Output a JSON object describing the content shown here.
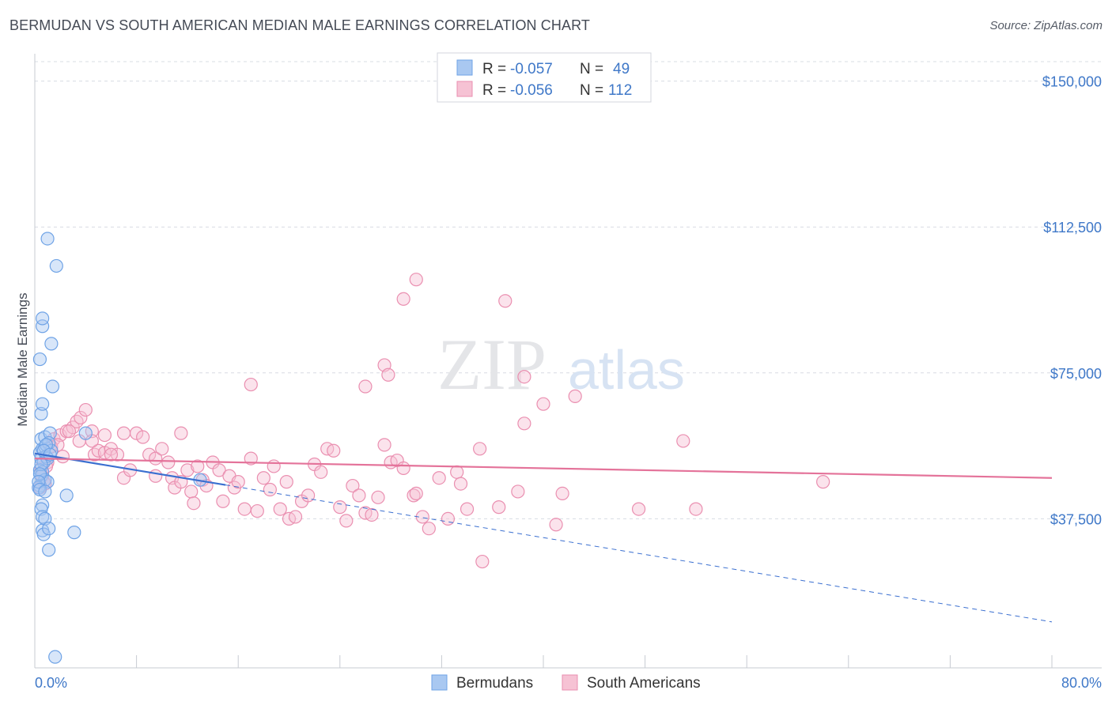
{
  "title": "BERMUDAN VS SOUTH AMERICAN MEDIAN MALE EARNINGS CORRELATION CHART",
  "source": "Source: ZipAtlas.com",
  "watermark": {
    "zip": "ZIP",
    "atlas": "atlas"
  },
  "colors": {
    "blue": "#6fa3e6",
    "blue_fill": "#a9c8f1",
    "blue_line": "#3a6fd0",
    "pink": "#ea8fb0",
    "pink_fill": "#f6c2d4",
    "pink_line": "#e4739a",
    "tick_text": "#3f78c8",
    "grid": "#d8dce3"
  },
  "legend": {
    "rows": [
      {
        "r_label": "R = ",
        "r_value": "-0.057",
        "n_label": "N = ",
        "n_value": "49",
        "series": "blue"
      },
      {
        "r_label": "R = ",
        "r_value": "-0.056",
        "n_label": "N = ",
        "n_value": "112",
        "series": "pink"
      }
    ]
  },
  "bottom_legend": [
    {
      "label": "Bermudans",
      "series": "blue"
    },
    {
      "label": "South Americans",
      "series": "pink"
    }
  ],
  "chart_data": {
    "type": "scatter",
    "title": "BERMUDAN VS SOUTH AMERICAN MEDIAN MALE EARNINGS CORRELATION CHART",
    "ylabel": "Median Male Earnings",
    "xlabel": "",
    "xlim": [
      0,
      80
    ],
    "ylim": [
      0,
      155000
    ],
    "x_tick_labels": [
      "0.0%",
      "80.0%"
    ],
    "y_ticks": [
      37500,
      75000,
      112500,
      150000
    ],
    "y_tick_labels": [
      "$37,500",
      "$75,000",
      "$112,500",
      "$150,000"
    ],
    "grid": "horizontal dashed",
    "series": [
      {
        "name": "Bermudans",
        "color": "#6fa3e6",
        "trend": {
          "x": [
            0,
            15
          ],
          "y": [
            54300,
            46200
          ],
          "extended_to": [
            80,
            11000
          ]
        },
        "points": [
          [
            0.4,
            54500
          ],
          [
            0.6,
            55500
          ],
          [
            0.8,
            56000
          ],
          [
            0.5,
            53000
          ],
          [
            0.7,
            52000
          ],
          [
            0.4,
            50000
          ],
          [
            0.6,
            49500
          ],
          [
            0.5,
            48500
          ],
          [
            0.8,
            47500
          ],
          [
            0.4,
            46000
          ],
          [
            0.3,
            45500
          ],
          [
            1.0,
            47000
          ],
          [
            0.6,
            41000
          ],
          [
            0.5,
            40000
          ],
          [
            0.6,
            38000
          ],
          [
            0.8,
            37500
          ],
          [
            0.6,
            34500
          ],
          [
            0.7,
            33500
          ],
          [
            1.1,
            35000
          ],
          [
            1.1,
            29500
          ],
          [
            3.1,
            34000
          ],
          [
            2.5,
            43500
          ],
          [
            0.5,
            58000
          ],
          [
            0.8,
            58500
          ],
          [
            1.2,
            59500
          ],
          [
            1.1,
            57000
          ],
          [
            0.9,
            53500
          ],
          [
            1.3,
            55000
          ],
          [
            1.0,
            53000
          ],
          [
            4.0,
            59500
          ],
          [
            0.5,
            64500
          ],
          [
            0.6,
            67000
          ],
          [
            1.4,
            71500
          ],
          [
            0.4,
            78500
          ],
          [
            1.3,
            82500
          ],
          [
            0.6,
            87000
          ],
          [
            0.6,
            89000
          ],
          [
            1.0,
            109500
          ],
          [
            1.7,
            102500
          ],
          [
            1.6,
            2000
          ],
          [
            0.5,
            51500
          ],
          [
            0.4,
            49000
          ],
          [
            0.9,
            56500
          ],
          [
            0.7,
            55000
          ],
          [
            0.3,
            47000
          ],
          [
            0.4,
            45000
          ],
          [
            13.0,
            47500
          ],
          [
            0.8,
            44500
          ],
          [
            1.2,
            54000
          ]
        ]
      },
      {
        "name": "South Americans",
        "color": "#ea8fb0",
        "trend": {
          "x": [
            0,
            80
          ],
          "y": [
            53000,
            48000
          ]
        },
        "points": [
          [
            0.5,
            50500
          ],
          [
            0.6,
            48500
          ],
          [
            0.7,
            47000
          ],
          [
            0.8,
            46500
          ],
          [
            1.0,
            52000
          ],
          [
            1.2,
            56000
          ],
          [
            1.5,
            58000
          ],
          [
            2.0,
            59000
          ],
          [
            2.5,
            60000
          ],
          [
            3.0,
            61000
          ],
          [
            3.3,
            62500
          ],
          [
            3.6,
            63500
          ],
          [
            4.0,
            65500
          ],
          [
            4.5,
            60000
          ],
          [
            4.7,
            54000
          ],
          [
            5.0,
            55000
          ],
          [
            5.5,
            54500
          ],
          [
            6.0,
            55500
          ],
          [
            6.5,
            54000
          ],
          [
            7.0,
            48000
          ],
          [
            7.5,
            50000
          ],
          [
            8.0,
            59500
          ],
          [
            8.5,
            58500
          ],
          [
            9.0,
            54000
          ],
          [
            9.5,
            53000
          ],
          [
            10.0,
            55500
          ],
          [
            10.5,
            52000
          ],
          [
            10.8,
            48000
          ],
          [
            11.0,
            45500
          ],
          [
            11.5,
            47000
          ],
          [
            12.0,
            50000
          ],
          [
            12.3,
            44500
          ],
          [
            12.5,
            41500
          ],
          [
            12.8,
            51000
          ],
          [
            13.2,
            47500
          ],
          [
            13.5,
            46000
          ],
          [
            14.0,
            52000
          ],
          [
            14.5,
            50000
          ],
          [
            14.8,
            42000
          ],
          [
            15.3,
            48500
          ],
          [
            15.7,
            45500
          ],
          [
            16.0,
            47000
          ],
          [
            16.5,
            40000
          ],
          [
            17.0,
            53000
          ],
          [
            17.5,
            39500
          ],
          [
            18.0,
            48000
          ],
          [
            18.5,
            45000
          ],
          [
            18.8,
            51000
          ],
          [
            19.3,
            40000
          ],
          [
            19.8,
            47000
          ],
          [
            20.0,
            37500
          ],
          [
            20.5,
            38000
          ],
          [
            21.0,
            42000
          ],
          [
            21.5,
            43500
          ],
          [
            22.0,
            51500
          ],
          [
            22.5,
            49500
          ],
          [
            23.0,
            55500
          ],
          [
            23.5,
            55000
          ],
          [
            24.0,
            40500
          ],
          [
            24.5,
            37000
          ],
          [
            25.0,
            46000
          ],
          [
            25.5,
            43500
          ],
          [
            26.0,
            39000
          ],
          [
            26.5,
            38500
          ],
          [
            27.0,
            43000
          ],
          [
            27.5,
            56500
          ],
          [
            28.0,
            52000
          ],
          [
            28.5,
            52500
          ],
          [
            29.0,
            50500
          ],
          [
            29.8,
            43500
          ],
          [
            30.0,
            44000
          ],
          [
            30.5,
            38000
          ],
          [
            31.0,
            35000
          ],
          [
            31.8,
            48000
          ],
          [
            32.5,
            37500
          ],
          [
            33.2,
            49500
          ],
          [
            33.5,
            46500
          ],
          [
            34.0,
            40000
          ],
          [
            35.2,
            26500
          ],
          [
            37.0,
            93500
          ],
          [
            36.5,
            40500
          ],
          [
            38.5,
            62000
          ],
          [
            38.0,
            44500
          ],
          [
            38.5,
            74000
          ],
          [
            40.0,
            67000
          ],
          [
            41.0,
            36000
          ],
          [
            41.5,
            44000
          ],
          [
            35.0,
            55500
          ],
          [
            30.0,
            99000
          ],
          [
            29.0,
            94000
          ],
          [
            27.5,
            77000
          ],
          [
            27.8,
            74500
          ],
          [
            26.0,
            71500
          ],
          [
            17.0,
            72000
          ],
          [
            42.5,
            69000
          ],
          [
            47.5,
            40000
          ],
          [
            51.0,
            57500
          ],
          [
            52.0,
            40000
          ],
          [
            62.0,
            47000
          ],
          [
            4.5,
            57500
          ],
          [
            5.5,
            59000
          ],
          [
            3.5,
            57500
          ],
          [
            7.0,
            59500
          ],
          [
            9.5,
            48500
          ],
          [
            11.5,
            59500
          ],
          [
            1.3,
            56000
          ],
          [
            1.8,
            56500
          ],
          [
            2.2,
            53500
          ],
          [
            0.4,
            45500
          ],
          [
            0.9,
            51000
          ],
          [
            2.7,
            60000
          ],
          [
            6.0,
            54000
          ]
        ]
      }
    ]
  }
}
